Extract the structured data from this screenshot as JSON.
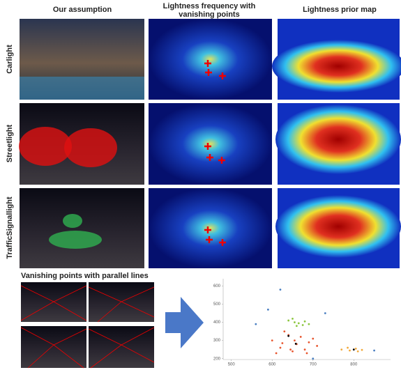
{
  "columns": [
    "Our assumption",
    "Lightness frequency with",
    "vanishing points",
    "Lightness prior map"
  ],
  "rows": [
    "Carlight",
    "Streetlight",
    "TrafficSignallight"
  ],
  "bottom_label": "Vanishing points with parallel lines",
  "chart_data": {
    "type": "scatter",
    "xlim": [
      480,
      890
    ],
    "ylim": [
      195,
      640
    ],
    "xticks": [
      500,
      600,
      700,
      800
    ],
    "yticks": [
      200,
      300,
      400,
      500,
      600
    ],
    "series": [
      {
        "name": null,
        "color": "#e8562f",
        "x": [
          600,
          620,
          640,
          660,
          680,
          700,
          610,
          650,
          690,
          630,
          670,
          710,
          625,
          655,
          685,
          645
        ],
        "y": [
          300,
          260,
          330,
          280,
          250,
          310,
          230,
          240,
          290,
          350,
          320,
          270,
          285,
          300,
          230,
          250
        ]
      },
      {
        "name": null,
        "color": "#8cc63f",
        "x": [
          640,
          655,
          665,
          675,
          690,
          650,
          680,
          660
        ],
        "y": [
          410,
          400,
          395,
          385,
          390,
          420,
          405,
          380
        ]
      },
      {
        "name": null,
        "color": "#f2a93b",
        "x": [
          770,
          790,
          805,
          820,
          785,
          810
        ],
        "y": [
          250,
          245,
          255,
          248,
          260,
          240
        ]
      },
      {
        "name": null,
        "color": "#4a7fc1",
        "x": [
          560,
          730,
          620,
          850,
          700,
          590
        ],
        "y": [
          390,
          450,
          580,
          245,
          200,
          470
        ]
      },
      {
        "name": null,
        "color": "#000000",
        "x": [
          640,
          658,
          800
        ],
        "y": [
          325,
          282,
          250
        ]
      }
    ]
  }
}
